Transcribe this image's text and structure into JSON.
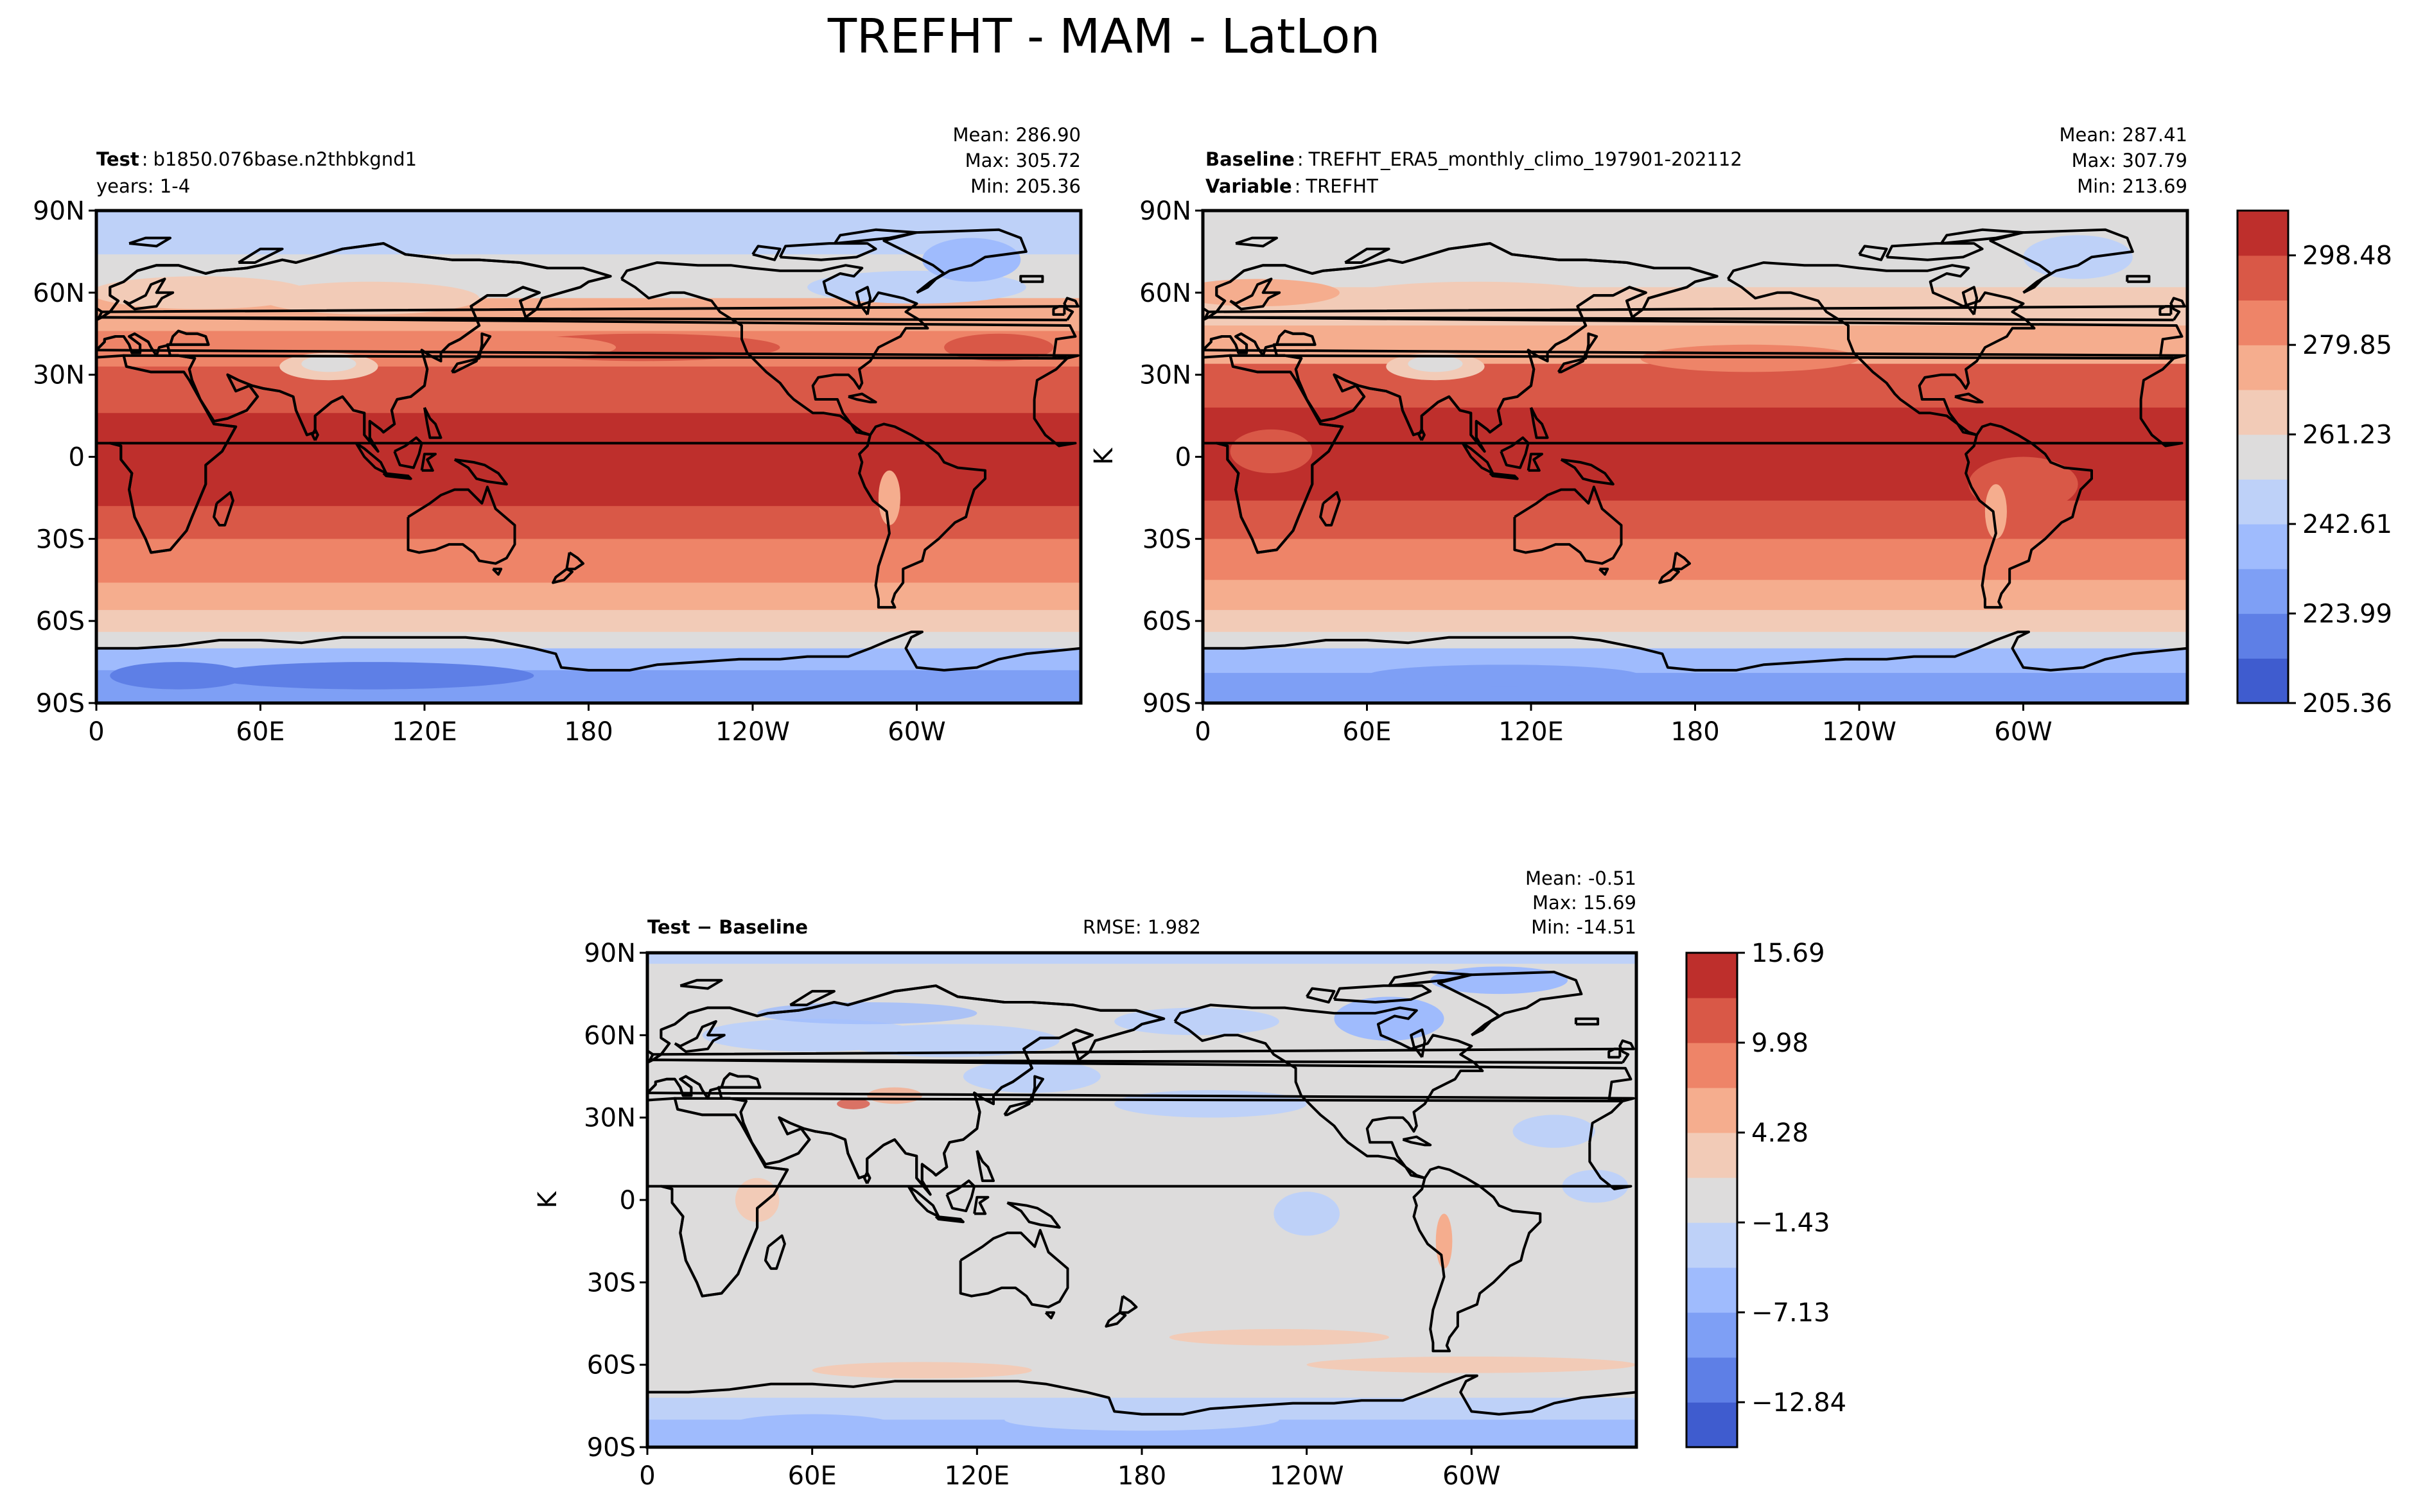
{
  "figure": {
    "title": "TREFHT - MAM - LatLon",
    "lat_ticks": [
      "90N",
      "60N",
      "30N",
      "0",
      "30S",
      "60S",
      "90S"
    ],
    "lon_ticks": [
      "0",
      "60E",
      "120E",
      "180",
      "120W",
      "60W"
    ],
    "units": "K"
  },
  "panels": {
    "test": {
      "label": "Test",
      "name": "b1850.076base.n2thbkgnd1",
      "years": "years: 1-4",
      "mean": "Mean: 286.90",
      "max": "Max: 305.72",
      "min": "Min: 205.36"
    },
    "baseline": {
      "label": "Baseline",
      "name": "TREFHT_ERA5_monthly_climo_197901-202112",
      "var_label": "Variable",
      "var_name": "TREFHT",
      "mean": "Mean: 287.41",
      "max": "Max: 307.79",
      "min": "Min: 213.69"
    },
    "diff": {
      "label": "Test − Baseline",
      "rmse": "RMSE: 1.982",
      "mean": "Mean: -0.51",
      "max": "Max: 15.69",
      "min": "Min: -14.51"
    }
  },
  "colorbars": {
    "abs": {
      "ticks": [
        "298.48",
        "279.85",
        "261.23",
        "242.61",
        "223.99",
        "205.36"
      ]
    },
    "diff": {
      "ticks": [
        "15.69",
        "9.98",
        "4.28",
        "−1.43",
        "−7.13",
        "−12.84"
      ]
    }
  },
  "colors": {
    "levels": [
      "#3f5ccf",
      "#5e7fe6",
      "#7e9ff5",
      "#9fbbfd",
      "#bed1f8",
      "#dddcdc",
      "#f2cbb7",
      "#f5ad8e",
      "#ee8468",
      "#d95847",
      "#be2f2c"
    ]
  },
  "chart_data": [
    {
      "type": "heatmap",
      "title": "TREFHT - MAM - LatLon",
      "panel": "Test",
      "case": "b1850.076base.n2thbkgnd1",
      "years": "1-4",
      "units": "K",
      "mean": 286.9,
      "max": 305.72,
      "min": 205.36,
      "colorbar_ticks": [
        205.36,
        223.99,
        242.61,
        261.23,
        279.85,
        298.48
      ],
      "lat_profile": {
        "lat": [
          90,
          75,
          60,
          45,
          30,
          15,
          0,
          -15,
          -30,
          -45,
          -60,
          -75,
          -90
        ],
        "value": [
          258,
          262,
          272,
          280,
          290,
          298,
          300,
          298,
          290,
          282,
          272,
          235,
          225
        ]
      }
    },
    {
      "type": "heatmap",
      "panel": "Baseline",
      "case": "TREFHT_ERA5_monthly_climo_197901-202112",
      "variable": "TREFHT",
      "units": "K",
      "mean": 287.41,
      "max": 307.79,
      "min": 213.69,
      "colorbar_ticks": [
        205.36,
        223.99,
        242.61,
        261.23,
        279.85,
        298.48
      ],
      "lat_profile": {
        "lat": [
          90,
          75,
          60,
          45,
          30,
          15,
          0,
          -15,
          -30,
          -45,
          -60,
          -75,
          -90
        ],
        "value": [
          258,
          260,
          272,
          281,
          290,
          298,
          300,
          298,
          291,
          283,
          272,
          240,
          232
        ]
      }
    },
    {
      "type": "heatmap",
      "panel": "Test − Baseline",
      "units": "K",
      "rmse": 1.982,
      "mean": -0.51,
      "max": 15.69,
      "min": -14.51,
      "colorbar_ticks": [
        -12.84,
        -7.13,
        -1.43,
        4.28,
        9.98,
        15.69
      ],
      "lat_profile": {
        "lat": [
          90,
          75,
          60,
          45,
          30,
          15,
          0,
          -15,
          -30,
          -45,
          -60,
          -75,
          -90
        ],
        "value": [
          -2,
          -3,
          -3,
          -1,
          -1,
          0,
          0,
          0,
          0,
          0,
          1,
          -3,
          -4
        ]
      }
    }
  ]
}
